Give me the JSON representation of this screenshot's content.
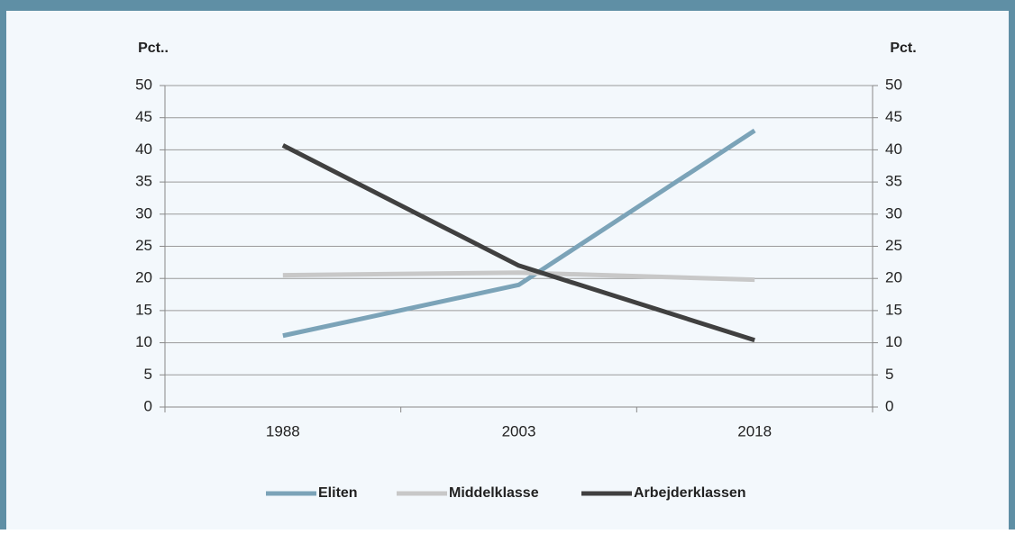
{
  "chart_data": {
    "type": "line",
    "ylabel": "Pct..",
    "y2label": "Pct.",
    "categories": [
      "1988",
      "2003",
      "2018"
    ],
    "series": [
      {
        "name": "Eliten",
        "color": "#7ba3b8",
        "values": [
          11.1,
          19,
          43
        ]
      },
      {
        "name": "Middelklasse",
        "color": "#c8c8c8",
        "values": [
          20.5,
          20.9,
          19.8
        ]
      },
      {
        "name": "Arbejderklassen",
        "color": "#404040",
        "values": [
          40.7,
          22,
          10.4
        ]
      }
    ],
    "ylim": [
      0,
      50
    ],
    "yticks": [
      0,
      5,
      10,
      15,
      20,
      25,
      30,
      35,
      40,
      45,
      50
    ],
    "y2lim": [
      0,
      50
    ],
    "y2ticks": [
      0,
      5,
      10,
      15,
      20,
      25,
      30,
      35,
      40,
      45,
      50
    ],
    "grid": true,
    "legend": "bottom"
  }
}
